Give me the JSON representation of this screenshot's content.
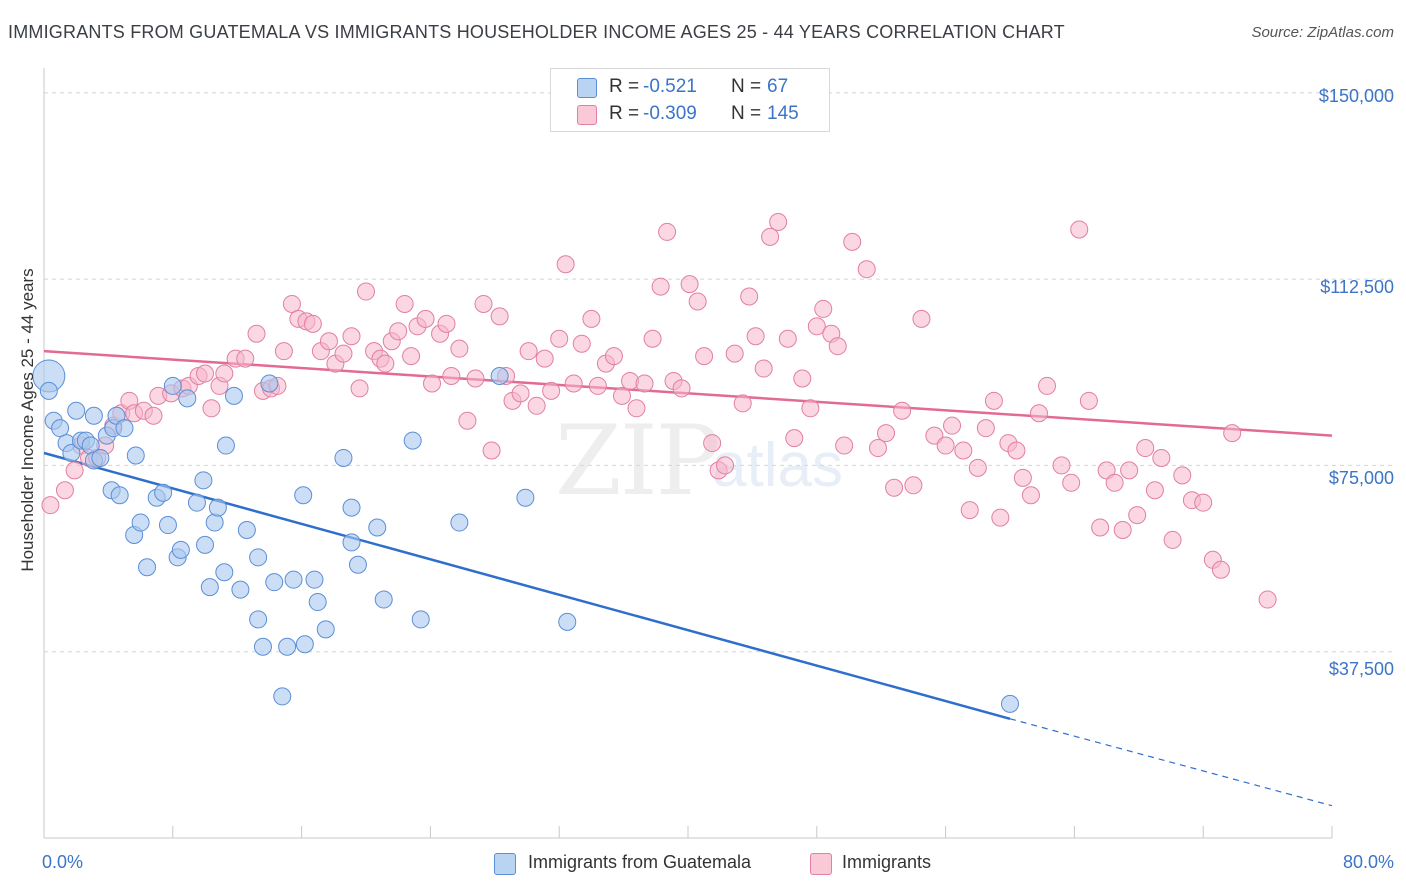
{
  "title": "IMMIGRANTS FROM GUATEMALA VS IMMIGRANTS HOUSEHOLDER INCOME AGES 25 - 44 YEARS CORRELATION CHART",
  "source": "Source: ZipAtlas.com",
  "watermark": {
    "zip": "ZIP",
    "atlas": "atlas"
  },
  "legend_top": {
    "rows": [
      {
        "r_label": "R =",
        "r_value": "-0.521",
        "n_label": "N =",
        "n_value": "67"
      },
      {
        "r_label": "R =",
        "r_value": "-0.309",
        "n_label": "N =",
        "n_value": "145"
      }
    ]
  },
  "colors": {
    "blue_fill": "#a9c8ef",
    "blue_stroke": "#5b8fd6",
    "blue_line": "#2f6fcc",
    "pink_fill": "#f6b7cb",
    "pink_stroke": "#e27fa2",
    "pink_line": "#e36a93",
    "tick_text": "#3b74c8",
    "grid": "#d5d5d5"
  },
  "chart_data": {
    "type": "scatter",
    "title": "IMMIGRANTS FROM GUATEMALA VS IMMIGRANTS HOUSEHOLDER INCOME AGES 25 - 44 YEARS CORRELATION CHART",
    "xlabel": "",
    "ylabel": "Householder Income Ages 25 - 44 years",
    "xlim": [
      0,
      80
    ],
    "ylim": [
      0,
      155000
    ],
    "x_tick_labels": [
      "0.0%",
      "80.0%"
    ],
    "y_ticks": [
      37500,
      75000,
      112500,
      150000
    ],
    "y_tick_labels": [
      "$37,500",
      "$75,000",
      "$112,500",
      "$150,000"
    ],
    "grid": true,
    "legend_position": "bottom",
    "series": [
      {
        "name": "Immigrants from Guatemala",
        "color": "#5b8fd6",
        "trend": {
          "x0": 0,
          "y0": 77500,
          "x1": 60,
          "y1": 24000,
          "dashed_to_x": 80,
          "dashed_to_y": 6500
        },
        "points": [
          [
            0.3,
            93000
          ],
          [
            0.3,
            90000
          ],
          [
            0.6,
            84000
          ],
          [
            1.0,
            82500
          ],
          [
            1.4,
            79500
          ],
          [
            1.7,
            77500
          ],
          [
            2.0,
            86000
          ],
          [
            2.3,
            80000
          ],
          [
            2.6,
            80000
          ],
          [
            2.9,
            79000
          ],
          [
            3.1,
            76000
          ],
          [
            3.1,
            85000
          ],
          [
            3.5,
            76500
          ],
          [
            3.9,
            81000
          ],
          [
            4.3,
            82500
          ],
          [
            4.5,
            85000
          ],
          [
            5.0,
            82500
          ],
          [
            5.7,
            77000
          ],
          [
            4.2,
            70000
          ],
          [
            4.7,
            69000
          ],
          [
            5.6,
            61000
          ],
          [
            6.0,
            63500
          ],
          [
            6.4,
            54500
          ],
          [
            7.0,
            68500
          ],
          [
            7.4,
            69500
          ],
          [
            7.7,
            63000
          ],
          [
            8.3,
            56500
          ],
          [
            8.5,
            58000
          ],
          [
            8.0,
            91000
          ],
          [
            8.9,
            88500
          ],
          [
            9.5,
            67500
          ],
          [
            9.9,
            72000
          ],
          [
            10.0,
            59000
          ],
          [
            10.3,
            50500
          ],
          [
            10.6,
            63500
          ],
          [
            10.8,
            66500
          ],
          [
            11.2,
            53500
          ],
          [
            11.3,
            79000
          ],
          [
            11.8,
            89000
          ],
          [
            12.2,
            50000
          ],
          [
            12.6,
            62000
          ],
          [
            13.3,
            56500
          ],
          [
            13.3,
            44000
          ],
          [
            13.6,
            38500
          ],
          [
            14.0,
            91500
          ],
          [
            14.3,
            51500
          ],
          [
            14.8,
            28500
          ],
          [
            15.1,
            38500
          ],
          [
            15.5,
            52000
          ],
          [
            16.1,
            69000
          ],
          [
            16.2,
            39000
          ],
          [
            16.8,
            52000
          ],
          [
            17.0,
            47500
          ],
          [
            17.5,
            42000
          ],
          [
            18.6,
            76500
          ],
          [
            19.1,
            66500
          ],
          [
            19.1,
            59500
          ],
          [
            19.5,
            55000
          ],
          [
            20.7,
            62500
          ],
          [
            21.1,
            48000
          ],
          [
            22.9,
            80000
          ],
          [
            23.4,
            44000
          ],
          [
            25.8,
            63500
          ],
          [
            28.3,
            93000
          ],
          [
            29.9,
            68500
          ],
          [
            32.5,
            43500
          ],
          [
            60.0,
            27000
          ]
        ]
      },
      {
        "name": "Immigrants",
        "color": "#e27fa2",
        "trend": {
          "x0": 0,
          "y0": 98000,
          "x1": 80,
          "y1": 81000
        },
        "points": [
          [
            0.4,
            67000
          ],
          [
            1.3,
            70000
          ],
          [
            1.9,
            74000
          ],
          [
            2.3,
            79000
          ],
          [
            2.8,
            76500
          ],
          [
            3.3,
            76500
          ],
          [
            3.8,
            79000
          ],
          [
            4.3,
            83000
          ],
          [
            4.8,
            85500
          ],
          [
            5.3,
            88000
          ],
          [
            5.6,
            85500
          ],
          [
            6.2,
            86000
          ],
          [
            6.8,
            85000
          ],
          [
            7.1,
            89000
          ],
          [
            7.9,
            89500
          ],
          [
            8.6,
            90500
          ],
          [
            9.0,
            91000
          ],
          [
            9.6,
            93000
          ],
          [
            10.0,
            93500
          ],
          [
            10.4,
            86500
          ],
          [
            10.9,
            91000
          ],
          [
            11.2,
            93500
          ],
          [
            11.9,
            96500
          ],
          [
            12.5,
            96500
          ],
          [
            13.2,
            101500
          ],
          [
            13.6,
            90000
          ],
          [
            14.1,
            90500
          ],
          [
            14.5,
            91000
          ],
          [
            14.9,
            98000
          ],
          [
            15.4,
            107500
          ],
          [
            15.8,
            104500
          ],
          [
            16.3,
            104000
          ],
          [
            16.7,
            103500
          ],
          [
            17.2,
            98000
          ],
          [
            17.7,
            100000
          ],
          [
            18.1,
            95500
          ],
          [
            18.6,
            97500
          ],
          [
            19.1,
            101000
          ],
          [
            19.6,
            90500
          ],
          [
            20.0,
            110000
          ],
          [
            20.5,
            98000
          ],
          [
            20.9,
            96500
          ],
          [
            21.2,
            95500
          ],
          [
            21.6,
            100000
          ],
          [
            22.0,
            102000
          ],
          [
            22.4,
            107500
          ],
          [
            22.8,
            97000
          ],
          [
            23.2,
            103000
          ],
          [
            23.7,
            104500
          ],
          [
            24.1,
            91500
          ],
          [
            24.6,
            101500
          ],
          [
            25.0,
            103500
          ],
          [
            25.3,
            93000
          ],
          [
            25.8,
            98500
          ],
          [
            26.3,
            84000
          ],
          [
            26.8,
            92500
          ],
          [
            27.3,
            107500
          ],
          [
            27.8,
            78000
          ],
          [
            28.3,
            105000
          ],
          [
            28.7,
            93000
          ],
          [
            29.1,
            88000
          ],
          [
            29.6,
            89500
          ],
          [
            30.1,
            98000
          ],
          [
            30.6,
            87000
          ],
          [
            31.1,
            96500
          ],
          [
            31.5,
            90000
          ],
          [
            32.0,
            100500
          ],
          [
            32.4,
            115500
          ],
          [
            32.9,
            91500
          ],
          [
            33.4,
            99500
          ],
          [
            34.0,
            104500
          ],
          [
            34.4,
            91000
          ],
          [
            34.9,
            95500
          ],
          [
            35.4,
            97000
          ],
          [
            35.9,
            89000
          ],
          [
            36.4,
            92000
          ],
          [
            36.8,
            86500
          ],
          [
            37.3,
            91500
          ],
          [
            37.8,
            100500
          ],
          [
            38.3,
            111000
          ],
          [
            38.7,
            122000
          ],
          [
            39.1,
            92000
          ],
          [
            39.6,
            90500
          ],
          [
            40.1,
            111500
          ],
          [
            40.6,
            108000
          ],
          [
            41.0,
            97000
          ],
          [
            41.5,
            79500
          ],
          [
            41.9,
            74000
          ],
          [
            42.3,
            75000
          ],
          [
            42.9,
            97500
          ],
          [
            43.4,
            87500
          ],
          [
            43.8,
            109000
          ],
          [
            44.2,
            101000
          ],
          [
            44.7,
            94500
          ],
          [
            45.1,
            121000
          ],
          [
            45.6,
            124000
          ],
          [
            46.2,
            100500
          ],
          [
            46.6,
            80500
          ],
          [
            47.1,
            92500
          ],
          [
            47.6,
            86500
          ],
          [
            48.0,
            103000
          ],
          [
            48.4,
            106500
          ],
          [
            48.9,
            101500
          ],
          [
            49.3,
            99000
          ],
          [
            49.7,
            79000
          ],
          [
            50.2,
            120000
          ],
          [
            51.1,
            114500
          ],
          [
            51.8,
            78500
          ],
          [
            52.3,
            81500
          ],
          [
            52.8,
            70500
          ],
          [
            53.3,
            86000
          ],
          [
            54.0,
            71000
          ],
          [
            54.5,
            104500
          ],
          [
            55.3,
            81000
          ],
          [
            56.0,
            79000
          ],
          [
            56.4,
            83000
          ],
          [
            57.1,
            78000
          ],
          [
            57.5,
            66000
          ],
          [
            58.0,
            74500
          ],
          [
            58.5,
            82500
          ],
          [
            59.0,
            88000
          ],
          [
            59.4,
            64500
          ],
          [
            59.9,
            79500
          ],
          [
            60.4,
            78000
          ],
          [
            60.8,
            72500
          ],
          [
            61.3,
            69000
          ],
          [
            61.8,
            85500
          ],
          [
            62.3,
            91000
          ],
          [
            63.2,
            75000
          ],
          [
            63.8,
            71500
          ],
          [
            64.3,
            122500
          ],
          [
            64.9,
            88000
          ],
          [
            65.6,
            62500
          ],
          [
            66.0,
            74000
          ],
          [
            66.5,
            71500
          ],
          [
            67.0,
            62000
          ],
          [
            67.4,
            74000
          ],
          [
            67.9,
            65000
          ],
          [
            68.4,
            78500
          ],
          [
            69.0,
            70000
          ],
          [
            69.4,
            76500
          ],
          [
            70.1,
            60000
          ],
          [
            70.7,
            73000
          ],
          [
            71.3,
            68000
          ],
          [
            72.0,
            67500
          ],
          [
            72.6,
            56000
          ],
          [
            73.1,
            54000
          ],
          [
            76.0,
            48000
          ],
          [
            73.8,
            81500
          ]
        ]
      }
    ]
  },
  "legend_bottom": [
    {
      "label": "Immigrants from Guatemala"
    },
    {
      "label": "Immigrants"
    }
  ],
  "axes": {
    "y_title": "Householder Income Ages 25 - 44 years",
    "x_min_label": "0.0%",
    "x_max_label": "80.0%",
    "y_labels": [
      "$150,000",
      "$112,500",
      "$75,000",
      "$37,500"
    ]
  }
}
